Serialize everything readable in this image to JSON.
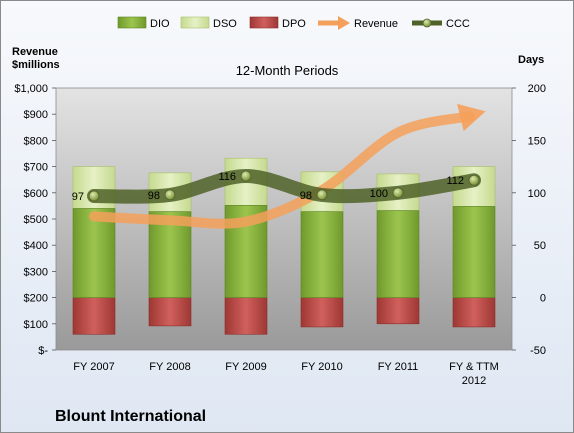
{
  "chart_data": {
    "type": "bar",
    "title": "12-Month Periods",
    "company": "Blount International",
    "ylabel_left": "Revenue\n$millions",
    "ylabel_right": "Days",
    "categories": [
      "FY 2007",
      "FY 2008",
      "FY 2009",
      "FY 2010",
      "FY 2011",
      "FY & TTM\n2012"
    ],
    "left_axis": {
      "min": 0,
      "max": 1000,
      "step": 100,
      "ticks": [
        "$-",
        "$100",
        "$200",
        "$300",
        "$400",
        "$500",
        "$600",
        "$700",
        "$800",
        "$900",
        "$1,000"
      ]
    },
    "right_axis": {
      "min": -50,
      "max": 200,
      "step": 50,
      "ticks": [
        "-50",
        "0",
        "50",
        "100",
        "150",
        "200"
      ]
    },
    "series": [
      {
        "name": "DIO",
        "kind": "stacked-bar",
        "axis": "right",
        "color": "#8bb63f",
        "values": [
          85,
          82,
          88,
          82,
          83,
          87
        ]
      },
      {
        "name": "DSO",
        "kind": "stacked-bar",
        "axis": "right",
        "color": "#d6e6a8",
        "values": [
          40,
          37,
          45,
          38,
          35,
          38
        ]
      },
      {
        "name": "DPO",
        "kind": "negative-bar",
        "axis": "right",
        "color": "#c0504d",
        "values": [
          -35,
          -27,
          -35,
          -28,
          -25,
          -28
        ]
      },
      {
        "name": "Revenue",
        "kind": "line",
        "axis": "left",
        "color": "#f5a05a",
        "values": [
          510,
          495,
          490,
          610,
          830,
          900
        ]
      },
      {
        "name": "CCC",
        "kind": "line",
        "axis": "right",
        "color": "#4f6228",
        "values": [
          97,
          98,
          116,
          98,
          100,
          112
        ],
        "labels": [
          "97",
          "98",
          "116",
          "98",
          "100",
          "112"
        ]
      }
    ],
    "legend": [
      "DIO",
      "DSO",
      "DPO",
      "Revenue",
      "CCC"
    ],
    "legend_position": "top",
    "grid": false
  }
}
